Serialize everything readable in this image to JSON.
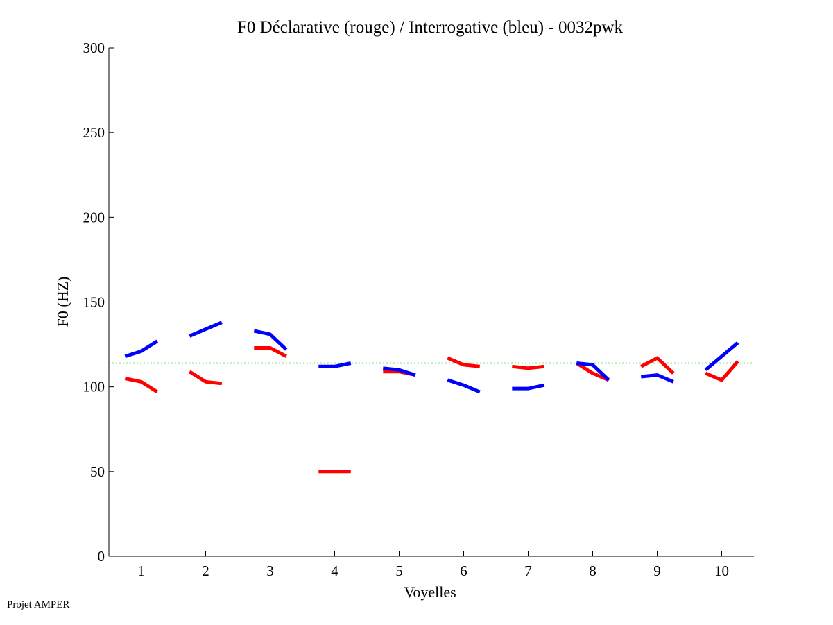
{
  "footer_text": "Projet AMPER",
  "chart_data": {
    "type": "line",
    "title": "F0 Déclarative (rouge) / Interrogative (bleu) - 0032pwk",
    "xlabel": "Voyelles",
    "ylabel": "F0 (HZ)",
    "xlim": [
      0.5,
      10.5
    ],
    "ylim": [
      0,
      300
    ],
    "xticks": [
      1,
      2,
      3,
      4,
      5,
      6,
      7,
      8,
      9,
      10
    ],
    "yticks": [
      0,
      50,
      100,
      150,
      200,
      250,
      300
    ],
    "grid": false,
    "reference_line": {
      "y": 114,
      "color": "#00cc00",
      "style": "dotted"
    },
    "series": [
      {
        "color": "#ff0000",
        "segments": [
          {
            "vowel": 1,
            "values": [
              105,
              103,
              97
            ]
          },
          {
            "vowel": 2,
            "values": [
              109,
              103,
              102
            ]
          },
          {
            "vowel": 3,
            "values": [
              123,
              123,
              118
            ]
          },
          {
            "vowel": 4,
            "values": [
              50,
              50,
              50
            ]
          },
          {
            "vowel": 5,
            "values": [
              109,
              109,
              107
            ]
          },
          {
            "vowel": 6,
            "values": [
              117,
              113,
              112
            ]
          },
          {
            "vowel": 7,
            "values": [
              112,
              111,
              112
            ]
          },
          {
            "vowel": 8,
            "values": [
              114,
              108,
              104
            ]
          },
          {
            "vowel": 9,
            "values": [
              112,
              117,
              108
            ]
          },
          {
            "vowel": 10,
            "values": [
              108,
              104,
              115
            ]
          }
        ]
      },
      {
        "color": "#0000ff",
        "segments": [
          {
            "vowel": 1,
            "values": [
              118,
              121,
              127
            ]
          },
          {
            "vowel": 2,
            "values": [
              130,
              134,
              138
            ]
          },
          {
            "vowel": 3,
            "values": [
              133,
              131,
              122
            ]
          },
          {
            "vowel": 4,
            "values": [
              112,
              112,
              114
            ]
          },
          {
            "vowel": 5,
            "values": [
              111,
              110,
              107
            ]
          },
          {
            "vowel": 6,
            "values": [
              104,
              101,
              97
            ]
          },
          {
            "vowel": 7,
            "values": [
              99,
              99,
              101
            ]
          },
          {
            "vowel": 8,
            "values": [
              114,
              113,
              104
            ]
          },
          {
            "vowel": 9,
            "values": [
              106,
              107,
              103
            ]
          },
          {
            "vowel": 10,
            "values": [
              110,
              118,
              126
            ]
          }
        ]
      }
    ]
  }
}
